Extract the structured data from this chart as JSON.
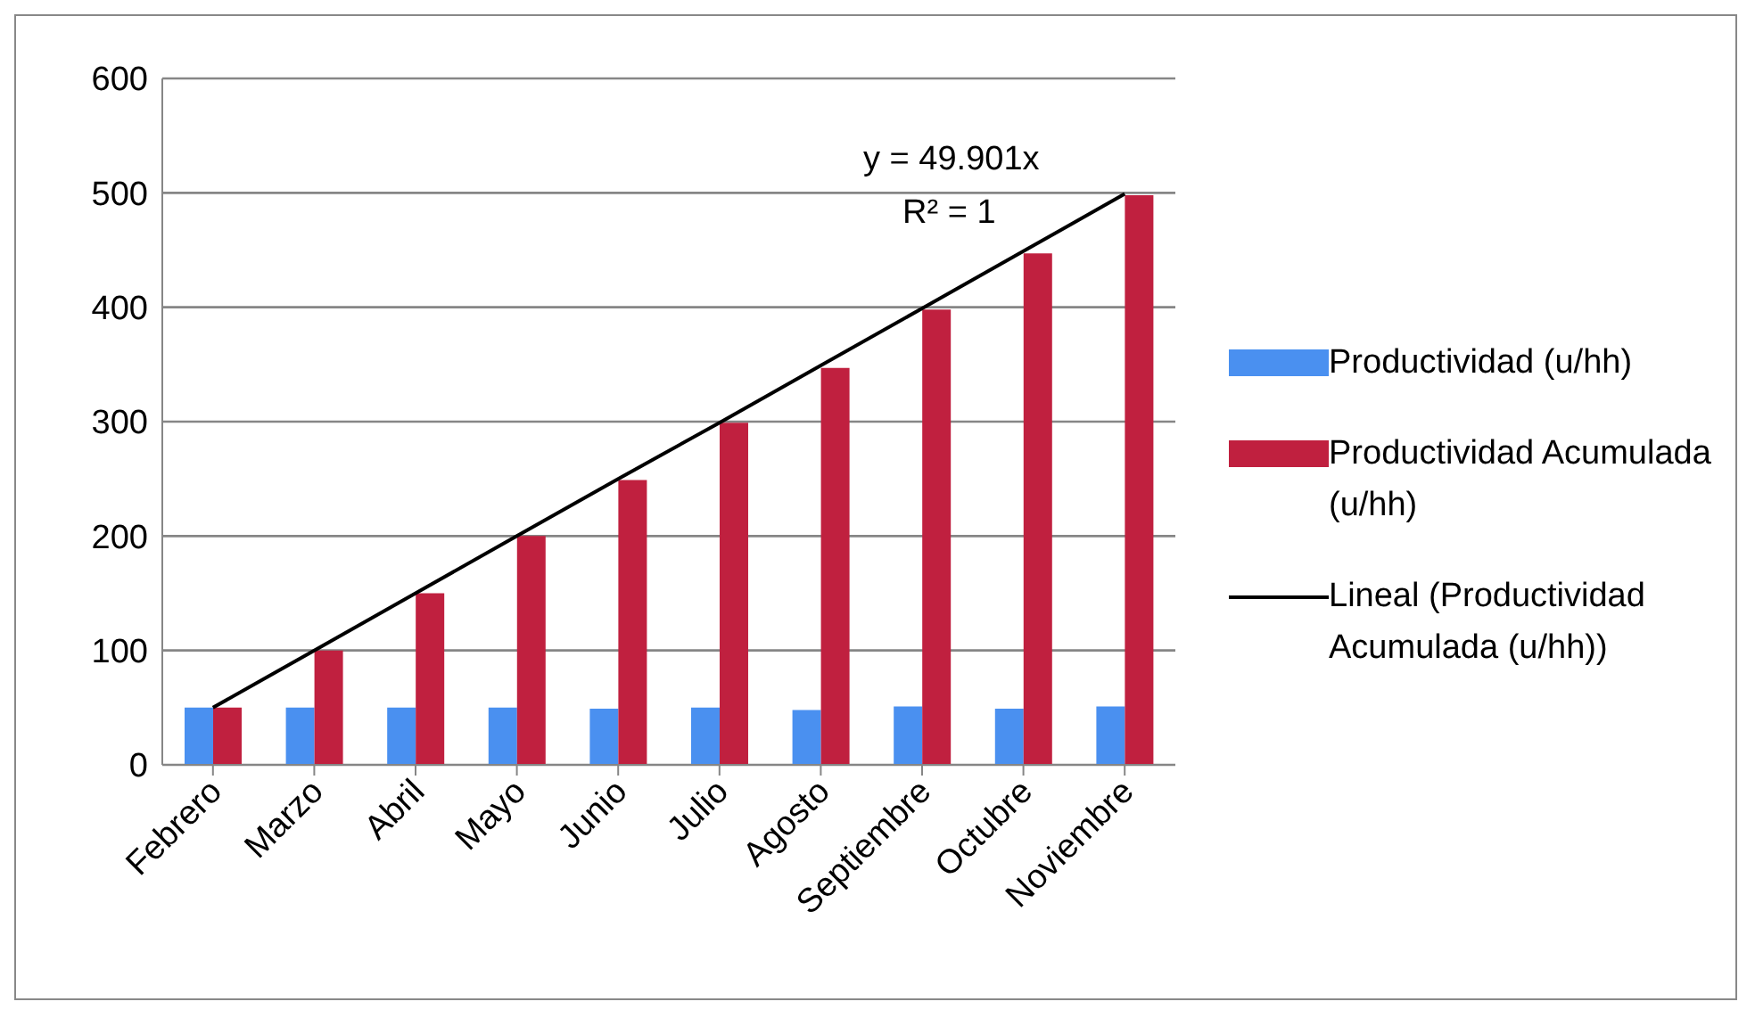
{
  "chart_data": {
    "type": "bar",
    "categories": [
      "Febrero",
      "Marzo",
      "Abril",
      "Mayo",
      "Junio",
      "Julio",
      "Agosto",
      "Septiembre",
      "Octubre",
      "Noviembre"
    ],
    "series": [
      {
        "name": "Productividad (u/hh)",
        "color": "#4a90f0",
        "values": [
          50,
          50,
          50,
          50,
          49,
          50,
          48,
          51,
          49,
          51
        ]
      },
      {
        "name": "Productividad Acumulada (u/hh)",
        "color": "#c0203f",
        "values": [
          50,
          100,
          150,
          200,
          249,
          299,
          347,
          398,
          447,
          498
        ]
      },
      {
        "name": "Lineal (Productividad Acumulada (u/hh))",
        "type": "line",
        "color": "#000000",
        "values": [
          50,
          100,
          150,
          200,
          250,
          299,
          349,
          399,
          449,
          499
        ]
      }
    ],
    "ylim": [
      0,
      600
    ],
    "yticks": [
      0,
      100,
      200,
      300,
      400,
      500,
      600
    ],
    "grid": "y",
    "legend": "right",
    "marker": "none",
    "annotations": [
      "y = 49.901x",
      "R² = 1"
    ]
  }
}
